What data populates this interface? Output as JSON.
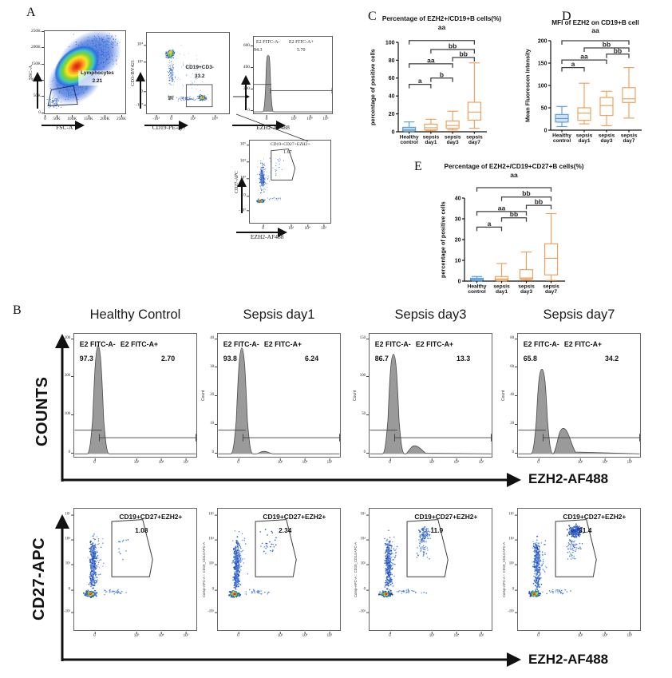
{
  "panels": {
    "A": "A",
    "B": "B",
    "C": "C",
    "D": "D",
    "E": "E"
  },
  "A": {
    "p1": {
      "xlabel": "FSC-A",
      "ylabel": "SSC-A",
      "gate": "Lymphocytes",
      "value": "2.21",
      "yticks": [
        "250K",
        "200K",
        "150K",
        "100K",
        "50K",
        "0"
      ],
      "xticks": [
        "0",
        "50K",
        "100K",
        "150K",
        "200K",
        "250K"
      ]
    },
    "p2": {
      "xlabel": "CD19-PE-cy7",
      "ylabel": "CD3-BV421",
      "gate": "CD19+CD3-",
      "value": "33.2",
      "yticks": [
        "10⁴",
        "10³",
        "0",
        "-10³"
      ],
      "xticks": [
        "-10³",
        "0",
        "10³",
        "10⁴"
      ]
    },
    "p3": {
      "xlabel": "EZH2-AF488",
      "neg": "E2 FITC-A-",
      "negv": "94.3",
      "pos": "E2 FITC-A+",
      "posv": "5.70",
      "yticks": [
        "600",
        "400",
        "200",
        "0"
      ],
      "xticks": [
        "0",
        "10³",
        "10⁴",
        "10⁵"
      ]
    },
    "p4": {
      "xlabel": "EZH2-AF488",
      "ylabel": "CD27-APC",
      "gate": "CD19+CD27+EZH2+",
      "value": "1.67",
      "yticks": [
        "10⁵",
        "10⁴",
        "10³",
        "0",
        "-10³"
      ],
      "xticks": [
        "0",
        "10³",
        "10⁴",
        "10⁵"
      ]
    }
  },
  "B": {
    "titles": [
      "Healthy Control",
      "Sepsis day1",
      "Sepsis day3",
      "Sepsis day7"
    ],
    "counts_label": "COUNTS",
    "cd27_label": "CD27-APC",
    "x_label": "EZH2-AF488",
    "hist": [
      {
        "count": "",
        "neg": "E2 FITC-A-",
        "negv": "97.3",
        "pos": "E2 FITC-A+",
        "posv": "2.70",
        "yticks": [
          "300",
          "200",
          "100",
          "0"
        ]
      },
      {
        "count": "Count",
        "neg": "E2 FITC-A-",
        "negv": "93.8",
        "pos": "E2 FITC-A+",
        "posv": "6.24",
        "yticks": [
          "40",
          "30",
          "20",
          "10",
          "0"
        ]
      },
      {
        "count": "Count",
        "neg": "E2 FITC-A-",
        "negv": "86.7",
        "pos": "E2 FITC-A+",
        "posv": "13.3",
        "yticks": [
          "150",
          "100",
          "50",
          "0"
        ]
      },
      {
        "count": "Count",
        "neg": "E2 FITC-A-",
        "negv": "65.8",
        "pos": "E2 FITC-A+",
        "posv": "34.2",
        "yticks": [
          "80",
          "60",
          "40",
          "20",
          "0"
        ]
      }
    ],
    "hist_xticks": [
      "0",
      "10³",
      "10⁴",
      "10⁵"
    ],
    "scatter": [
      {
        "ylab": "",
        "gate": "CD19+CD27+EZH2+",
        "value": "1.08"
      },
      {
        "ylab": "Comp-APC-A :: CD19_CD14 APC-A",
        "gate": "CD19+CD27+EZH2+",
        "value": "2.34"
      },
      {
        "ylab": "Comp-APC-A :: CD19_CD14 APC-A",
        "gate": "CD19+CD27+EZH2+",
        "value": "11.9"
      },
      {
        "ylab": "Comp-APC-A :: CD19_CD14 APC-A",
        "gate": "CD19+CD27+EZH2+",
        "value": "31.4"
      }
    ],
    "scatter_yticks": [
      "10⁵",
      "10⁴",
      "10³",
      "0",
      "-10³"
    ],
    "scatter_xticks": [
      "0",
      "10³",
      "10⁴",
      "10⁵"
    ]
  },
  "chart_data": [
    {
      "id": "C",
      "type": "box",
      "title": "Percentage of EZH2+/CD19+B cells(%)",
      "subtitle": "aa",
      "ylabel": "percentage of positive cells",
      "ylim": [
        0,
        100
      ],
      "yticks": [
        0,
        20,
        40,
        60,
        80,
        100
      ],
      "categories": [
        [
          "Healthy",
          "control"
        ],
        [
          "sepsis",
          "day1"
        ],
        [
          "sepsis",
          "day3"
        ],
        [
          "sepsis",
          "day7"
        ]
      ],
      "series": [
        {
          "name": "Healthy control",
          "color": "#5b9bd5",
          "fill": "#cfe3f4",
          "min": 0.3,
          "q1": 1,
          "median": 2.5,
          "q3": 5,
          "max": 11
        },
        {
          "name": "sepsis day1",
          "color": "#ef9f57",
          "fill": "#ffffff",
          "min": 1,
          "q1": 2,
          "median": 4.5,
          "q3": 8.5,
          "max": 14
        },
        {
          "name": "sepsis day3",
          "color": "#ef9f57",
          "fill": "#ffffff",
          "min": 2,
          "q1": 4,
          "median": 7,
          "q3": 12,
          "max": 23
        },
        {
          "name": "sepsis day7",
          "color": "#ef9f57",
          "fill": "#ffffff",
          "min": 4,
          "q1": 13,
          "median": 22,
          "q3": 33,
          "max": 77
        }
      ],
      "annotations": [
        {
          "i": 0,
          "j": 1,
          "y": 53,
          "label": "a"
        },
        {
          "i": 1,
          "j": 2,
          "y": 60,
          "label": "b"
        },
        {
          "i": 0,
          "j": 2,
          "y": 76,
          "label": "aa"
        },
        {
          "i": 2,
          "j": 3,
          "y": 83,
          "label": "bb"
        },
        {
          "i": 1,
          "j": 3,
          "y": 92,
          "label": "bb"
        },
        {
          "i": 0,
          "j": 3,
          "y": 102,
          "label": ""
        }
      ]
    },
    {
      "id": "D",
      "type": "box",
      "title": "MFI of EZH2 on CD19+B cell",
      "subtitle": "aa",
      "ylabel": "Mean Fluorescen Intensity",
      "ylim": [
        0,
        200
      ],
      "yticks": [
        0,
        50,
        100,
        150,
        200
      ],
      "categories": [
        [
          "Healthy",
          "control"
        ],
        [
          "sepsis",
          "day1"
        ],
        [
          "sepsis",
          "day3"
        ],
        [
          "sepsis",
          "day7"
        ]
      ],
      "series": [
        {
          "name": "Healthy control",
          "color": "#5b9bd5",
          "fill": "#cfe3f4",
          "min": 8,
          "q1": 18,
          "median": 26,
          "q3": 35,
          "max": 53
        },
        {
          "name": "sepsis day1",
          "color": "#ef9f57",
          "fill": "#ffffff",
          "min": 14,
          "q1": 22,
          "median": 38,
          "q3": 50,
          "max": 105
        },
        {
          "name": "sepsis day3",
          "color": "#ef9f57",
          "fill": "#ffffff",
          "min": 10,
          "q1": 33,
          "median": 55,
          "q3": 73,
          "max": 87
        },
        {
          "name": "sepsis day7",
          "color": "#ef9f57",
          "fill": "#ffffff",
          "min": 27,
          "q1": 62,
          "median": 70,
          "q3": 95,
          "max": 140
        }
      ],
      "annotations": [
        {
          "i": 0,
          "j": 1,
          "y": 140,
          "label": "a"
        },
        {
          "i": 0,
          "j": 2,
          "y": 157,
          "label": "aa"
        },
        {
          "i": 2,
          "j": 3,
          "y": 170,
          "label": "bb"
        },
        {
          "i": 1,
          "j": 3,
          "y": 184,
          "label": "bb"
        },
        {
          "i": 0,
          "j": 3,
          "y": 200,
          "label": ""
        }
      ]
    },
    {
      "id": "E",
      "type": "box",
      "title": "Percentage of EZH2+/CD19+CD27+B cells(%)",
      "subtitle": "aa",
      "ylabel": "percentage of positive cells",
      "ylim": [
        0,
        40
      ],
      "yticks": [
        0,
        10,
        20,
        30,
        40
      ],
      "categories": [
        [
          "Healthy",
          "control"
        ],
        [
          "sepsis",
          "day1"
        ],
        [
          "sepsis",
          "day3"
        ],
        [
          "sepsis",
          "day7"
        ]
      ],
      "series": [
        {
          "name": "Healthy control",
          "color": "#5b9bd5",
          "fill": "#cfe3f4",
          "min": 0.1,
          "q1": 0.4,
          "median": 0.8,
          "q3": 1.4,
          "max": 2.2
        },
        {
          "name": "sepsis day1",
          "color": "#ef9f57",
          "fill": "#ffffff",
          "min": 0.1,
          "q1": 0.4,
          "median": 1,
          "q3": 2.2,
          "max": 8.5
        },
        {
          "name": "sepsis day3",
          "color": "#ef9f57",
          "fill": "#ffffff",
          "min": 0.4,
          "q1": 1,
          "median": 1.5,
          "q3": 5.5,
          "max": 14
        },
        {
          "name": "sepsis day7",
          "color": "#ef9f57",
          "fill": "#ffffff",
          "min": 0.3,
          "q1": 3,
          "median": 11,
          "q3": 18,
          "max": 32.5
        }
      ],
      "annotations": [
        {
          "i": 0,
          "j": 1,
          "y": 26,
          "label": "a"
        },
        {
          "i": 1,
          "j": 2,
          "y": 30.5,
          "label": "bb"
        },
        {
          "i": 0,
          "j": 2,
          "y": 33.5,
          "label": "aa"
        },
        {
          "i": 2,
          "j": 3,
          "y": 36.5,
          "label": "bb"
        },
        {
          "i": 1,
          "j": 3,
          "y": 40.5,
          "label": "bb"
        },
        {
          "i": 0,
          "j": 3,
          "y": 45,
          "label": ""
        }
      ]
    }
  ]
}
